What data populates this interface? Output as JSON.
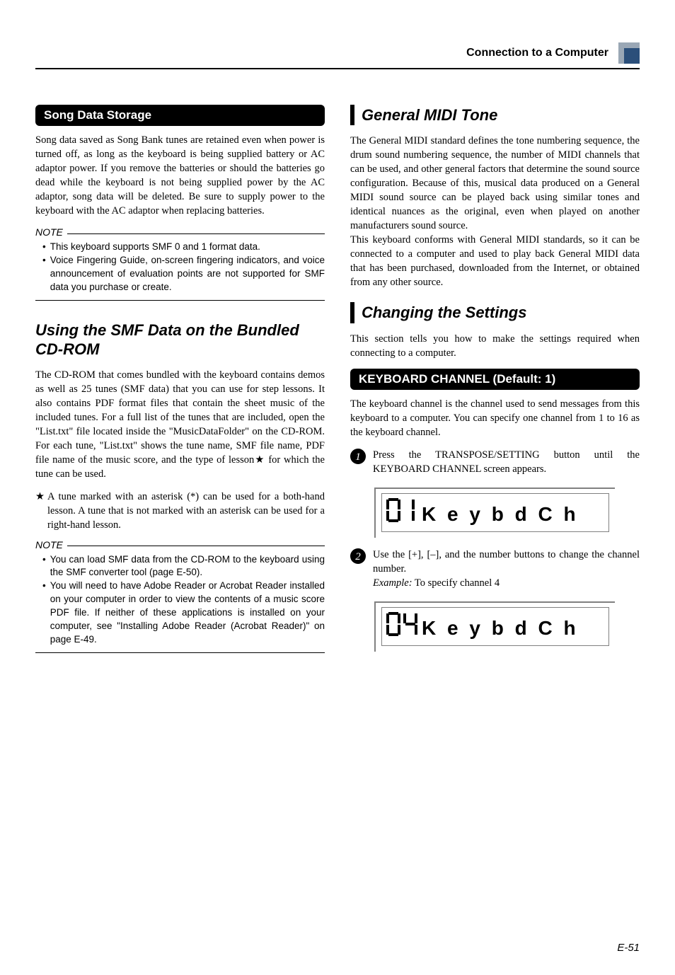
{
  "header": {
    "title": "Connection to a Computer",
    "icon_colors": {
      "outer": "#9aa7b5",
      "inner": "#2b4f7a"
    }
  },
  "left": {
    "bar1": "Song Data Storage",
    "para1": "Song data saved as Song Bank tunes are retained even when power is turned off, as long as the keyboard is being supplied battery or AC adaptor power. If you remove the batteries or should the batteries go dead while the keyboard is not being supplied power by the AC adaptor, song data will be deleted. Be sure to supply power to the keyboard with the AC adaptor when replacing batteries.",
    "note_label": "NOTE",
    "note1_items": [
      "This keyboard supports SMF 0 and 1 format data.",
      "Voice Fingering Guide, on-screen fingering indicators, and voice announcement of evaluation points are not supported for SMF data you purchase or create."
    ],
    "section_title": "Using the SMF Data on the Bundled CD-ROM",
    "para2": "The CD-ROM that comes bundled with the keyboard contains demos as well as 25 tunes (SMF data) that you can use for step lessons. It also contains PDF format files that contain the sheet music of the included tunes. For a full list of the tunes that are included, open the \"List.txt\" file located inside the \"MusicDataFolder\" on the CD-ROM. For each tune, \"List.txt\" shows the tune name, SMF file name, PDF file name of the music score, and the type of lesson★ for which the tune can be used.",
    "star_text": "A tune marked with an asterisk (*) can be used for a both-hand lesson. A tune that is not marked with an asterisk can be used for a right-hand lesson.",
    "note2_items": [
      "You can load SMF data from the CD-ROM to the keyboard using the SMF converter tool (page E-50).",
      "You will need to have Adobe Reader or Acrobat Reader installed on your computer in order to view the contents of a music score PDF file. If neither of these applications is installed on your computer, see \"Installing Adobe Reader (Acrobat Reader)\" on page E-49."
    ]
  },
  "right": {
    "title1": "General MIDI Tone",
    "para1a": "The General MIDI standard defines the tone numbering sequence, the drum sound numbering sequence, the number of MIDI channels that can be used, and other general factors that determine the sound source configuration. Because of this, musical data produced on a General MIDI sound source can be played back using similar tones and identical nuances as the original, even when played on another manufacturers sound source.",
    "para1b": "This keyboard conforms with General MIDI standards, so it can be connected to a computer and used to play back General MIDI data that has been purchased, downloaded from the Internet, or obtained from any other source.",
    "title2": "Changing the Settings",
    "para2": "This section tells you how to make the settings required when connecting to a computer.",
    "bar2": "KEYBOARD CHANNEL (Default: 1)",
    "para3": "The keyboard channel is the channel used to send messages from this keyboard to a computer. You can specify one channel from 1 to 16 as the keyboard channel.",
    "step1": "Press the TRANSPOSE/SETTING button until the KEYBOARD CHANNEL screen appears.",
    "lcd1_num": "01",
    "lcd1_text_chars": [
      "K",
      "e",
      "y",
      "b",
      "d",
      " ",
      "C",
      "h"
    ],
    "step2a": "Use the [+], [–], and the number buttons to change the channel number.",
    "step2_example_label": "Example:",
    "step2_example_text": " To specify channel 4",
    "lcd2_num": "04",
    "lcd2_text_chars": [
      "K",
      "e",
      "y",
      "b",
      "d",
      " ",
      "C",
      "h"
    ]
  },
  "footer": {
    "page": "E-51"
  }
}
